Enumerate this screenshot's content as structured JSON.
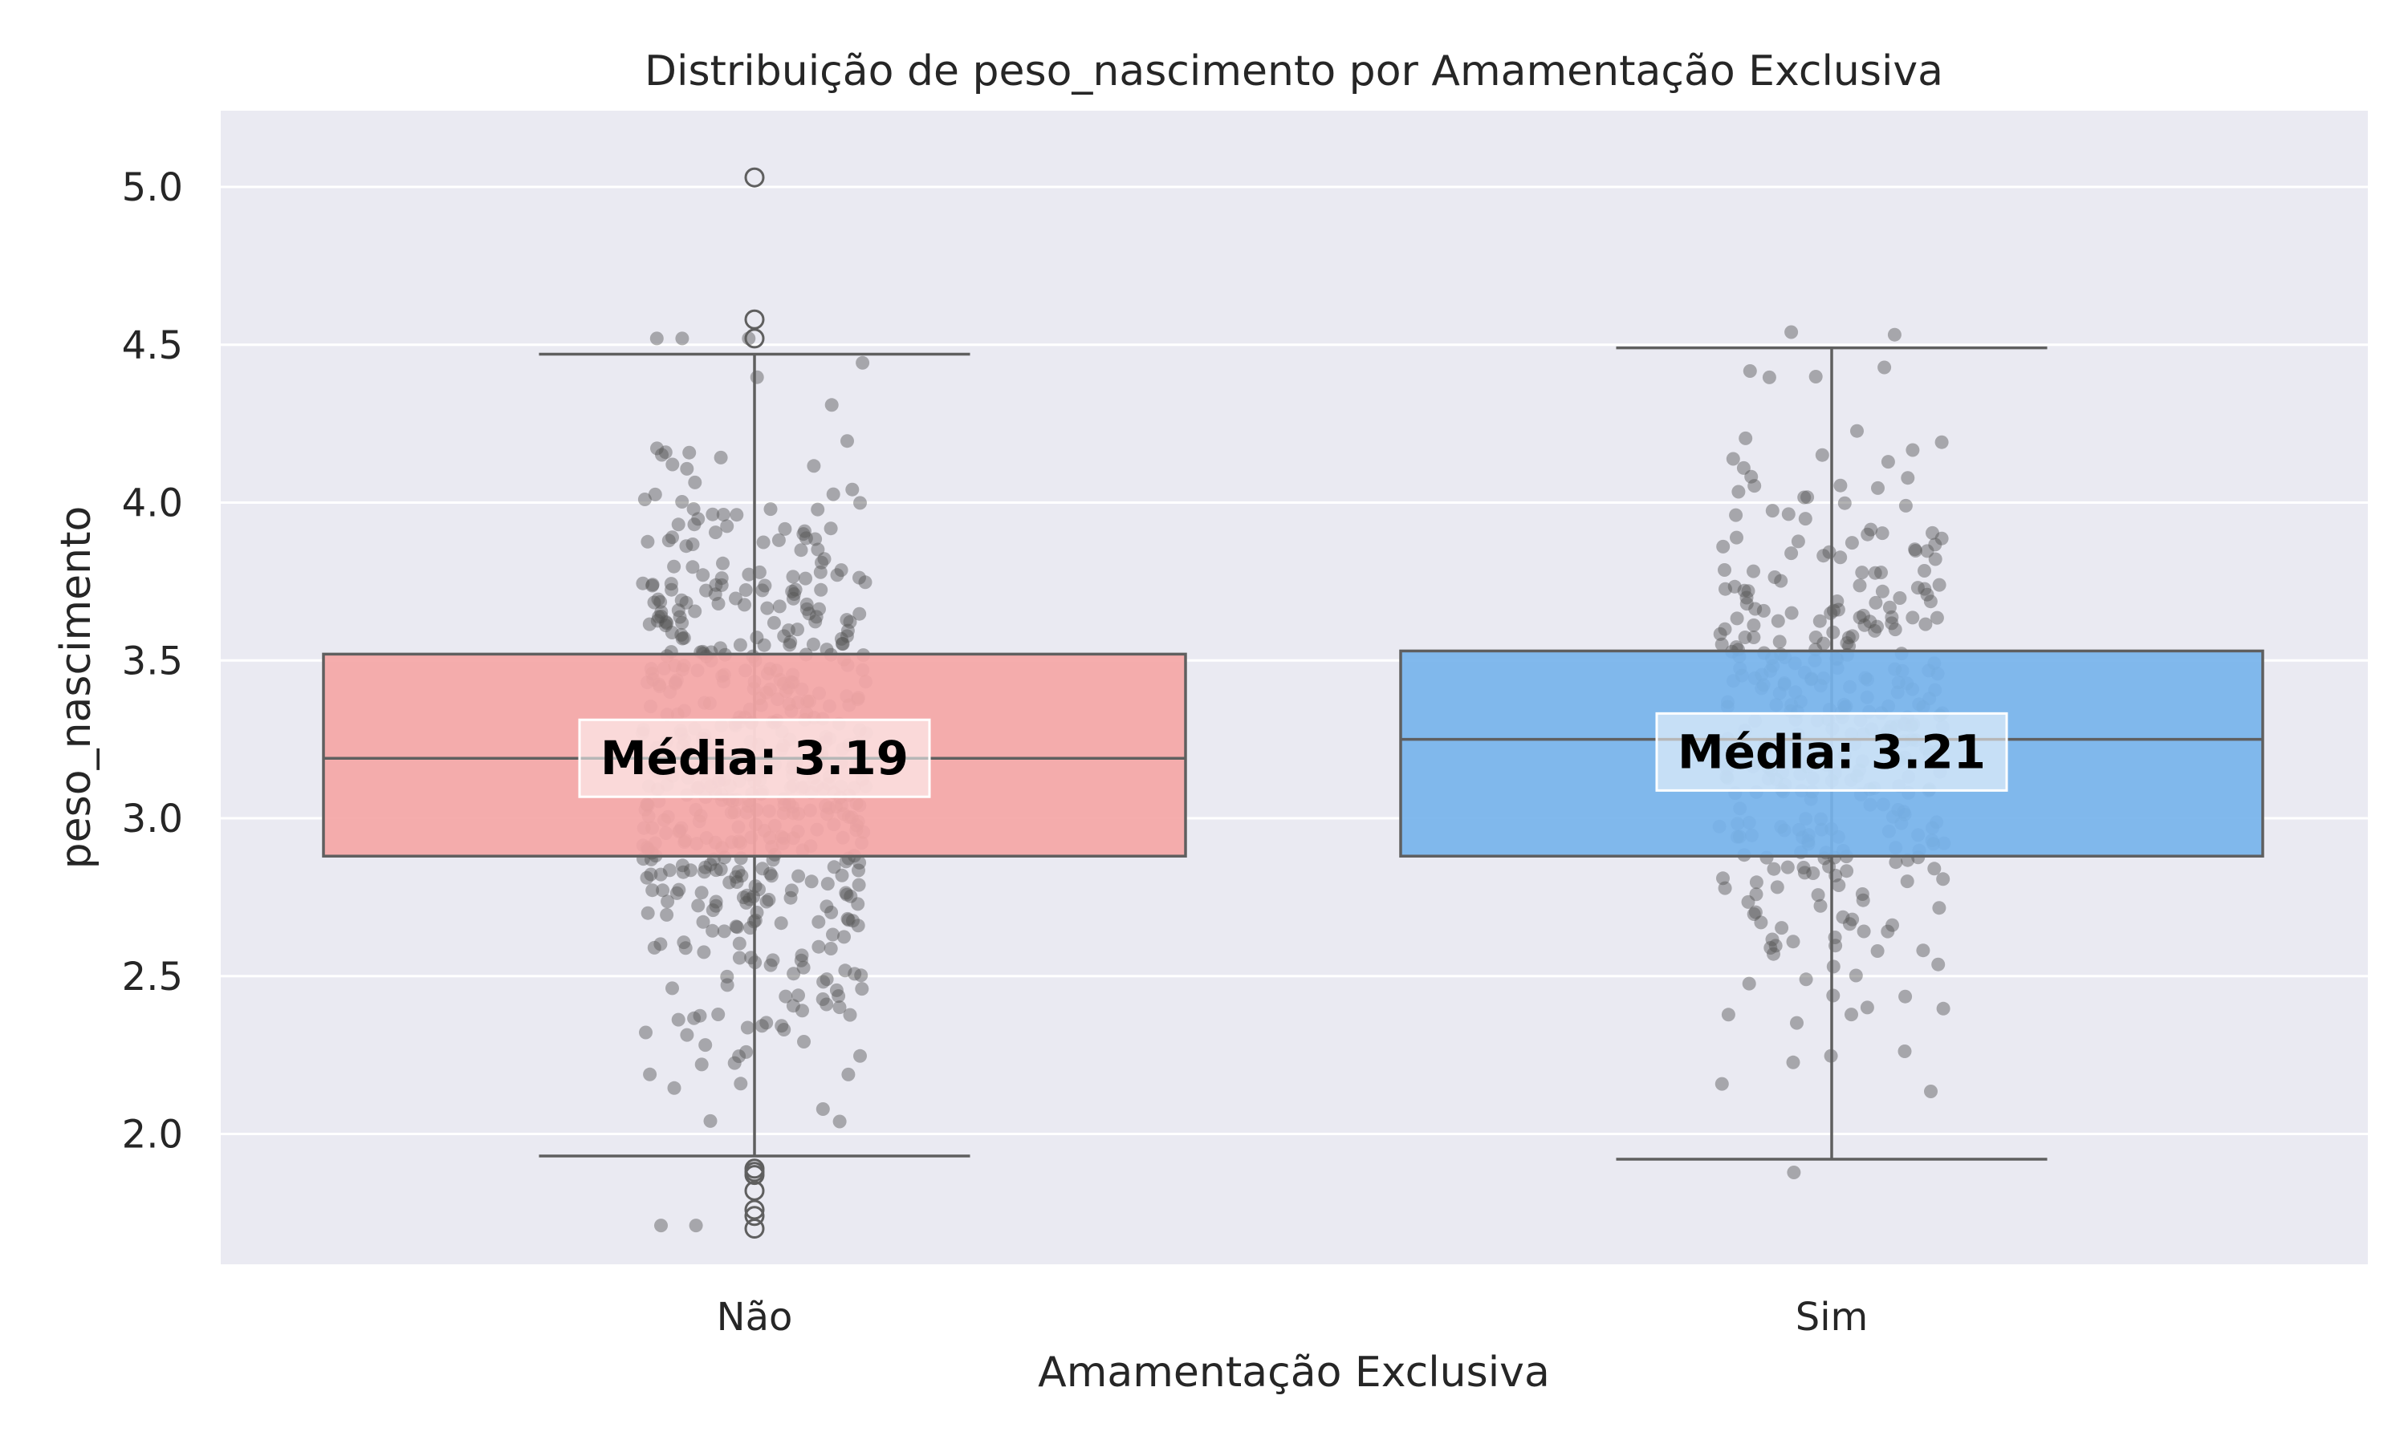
{
  "chart_data": {
    "type": "box",
    "title": "Distribuição de peso_nascimento por Amamentação Exclusiva",
    "xlabel": "Amamentação Exclusiva",
    "ylabel": "peso_nascimento",
    "categories": [
      "Não",
      "Sim"
    ],
    "ylim": [
      1.55,
      5.2
    ],
    "yticks": [
      "2.0",
      "2.5",
      "3.0",
      "3.5",
      "4.0",
      "4.5",
      "5.0"
    ],
    "grid": true,
    "mean_label_prefix": "Média: ",
    "groups": [
      {
        "category": "Não",
        "color": "#f4a6a6",
        "q1": 2.88,
        "median": 3.19,
        "q3": 3.52,
        "whisker_low": 1.93,
        "whisker_high": 4.47,
        "mean": "3.19",
        "outliers": [
          5.03,
          4.58,
          4.52,
          1.89,
          1.88,
          1.87,
          1.82,
          1.76,
          1.74,
          1.7
        ]
      },
      {
        "category": "Sim",
        "color": "#76b3ec",
        "q1": 2.88,
        "median": 3.25,
        "q3": 3.53,
        "whisker_low": 1.92,
        "whisker_high": 4.49,
        "mean": "3.21",
        "outliers": []
      }
    ]
  }
}
